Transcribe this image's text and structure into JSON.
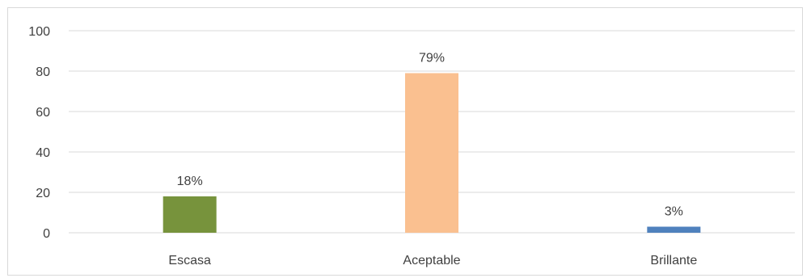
{
  "chart_data": {
    "type": "bar",
    "categories": [
      "Escasa",
      "Aceptable",
      "Brillante"
    ],
    "values": [
      18,
      79,
      3
    ],
    "data_labels": [
      "18%",
      "79%",
      "3%"
    ],
    "colors": [
      "#77933c",
      "#fac090",
      "#4f81bd"
    ],
    "y_ticks": [
      "0",
      "20",
      "40",
      "60",
      "80",
      "100"
    ],
    "ylim": [
      0,
      100
    ],
    "grid": true,
    "title": "",
    "xlabel": "",
    "ylabel": ""
  }
}
